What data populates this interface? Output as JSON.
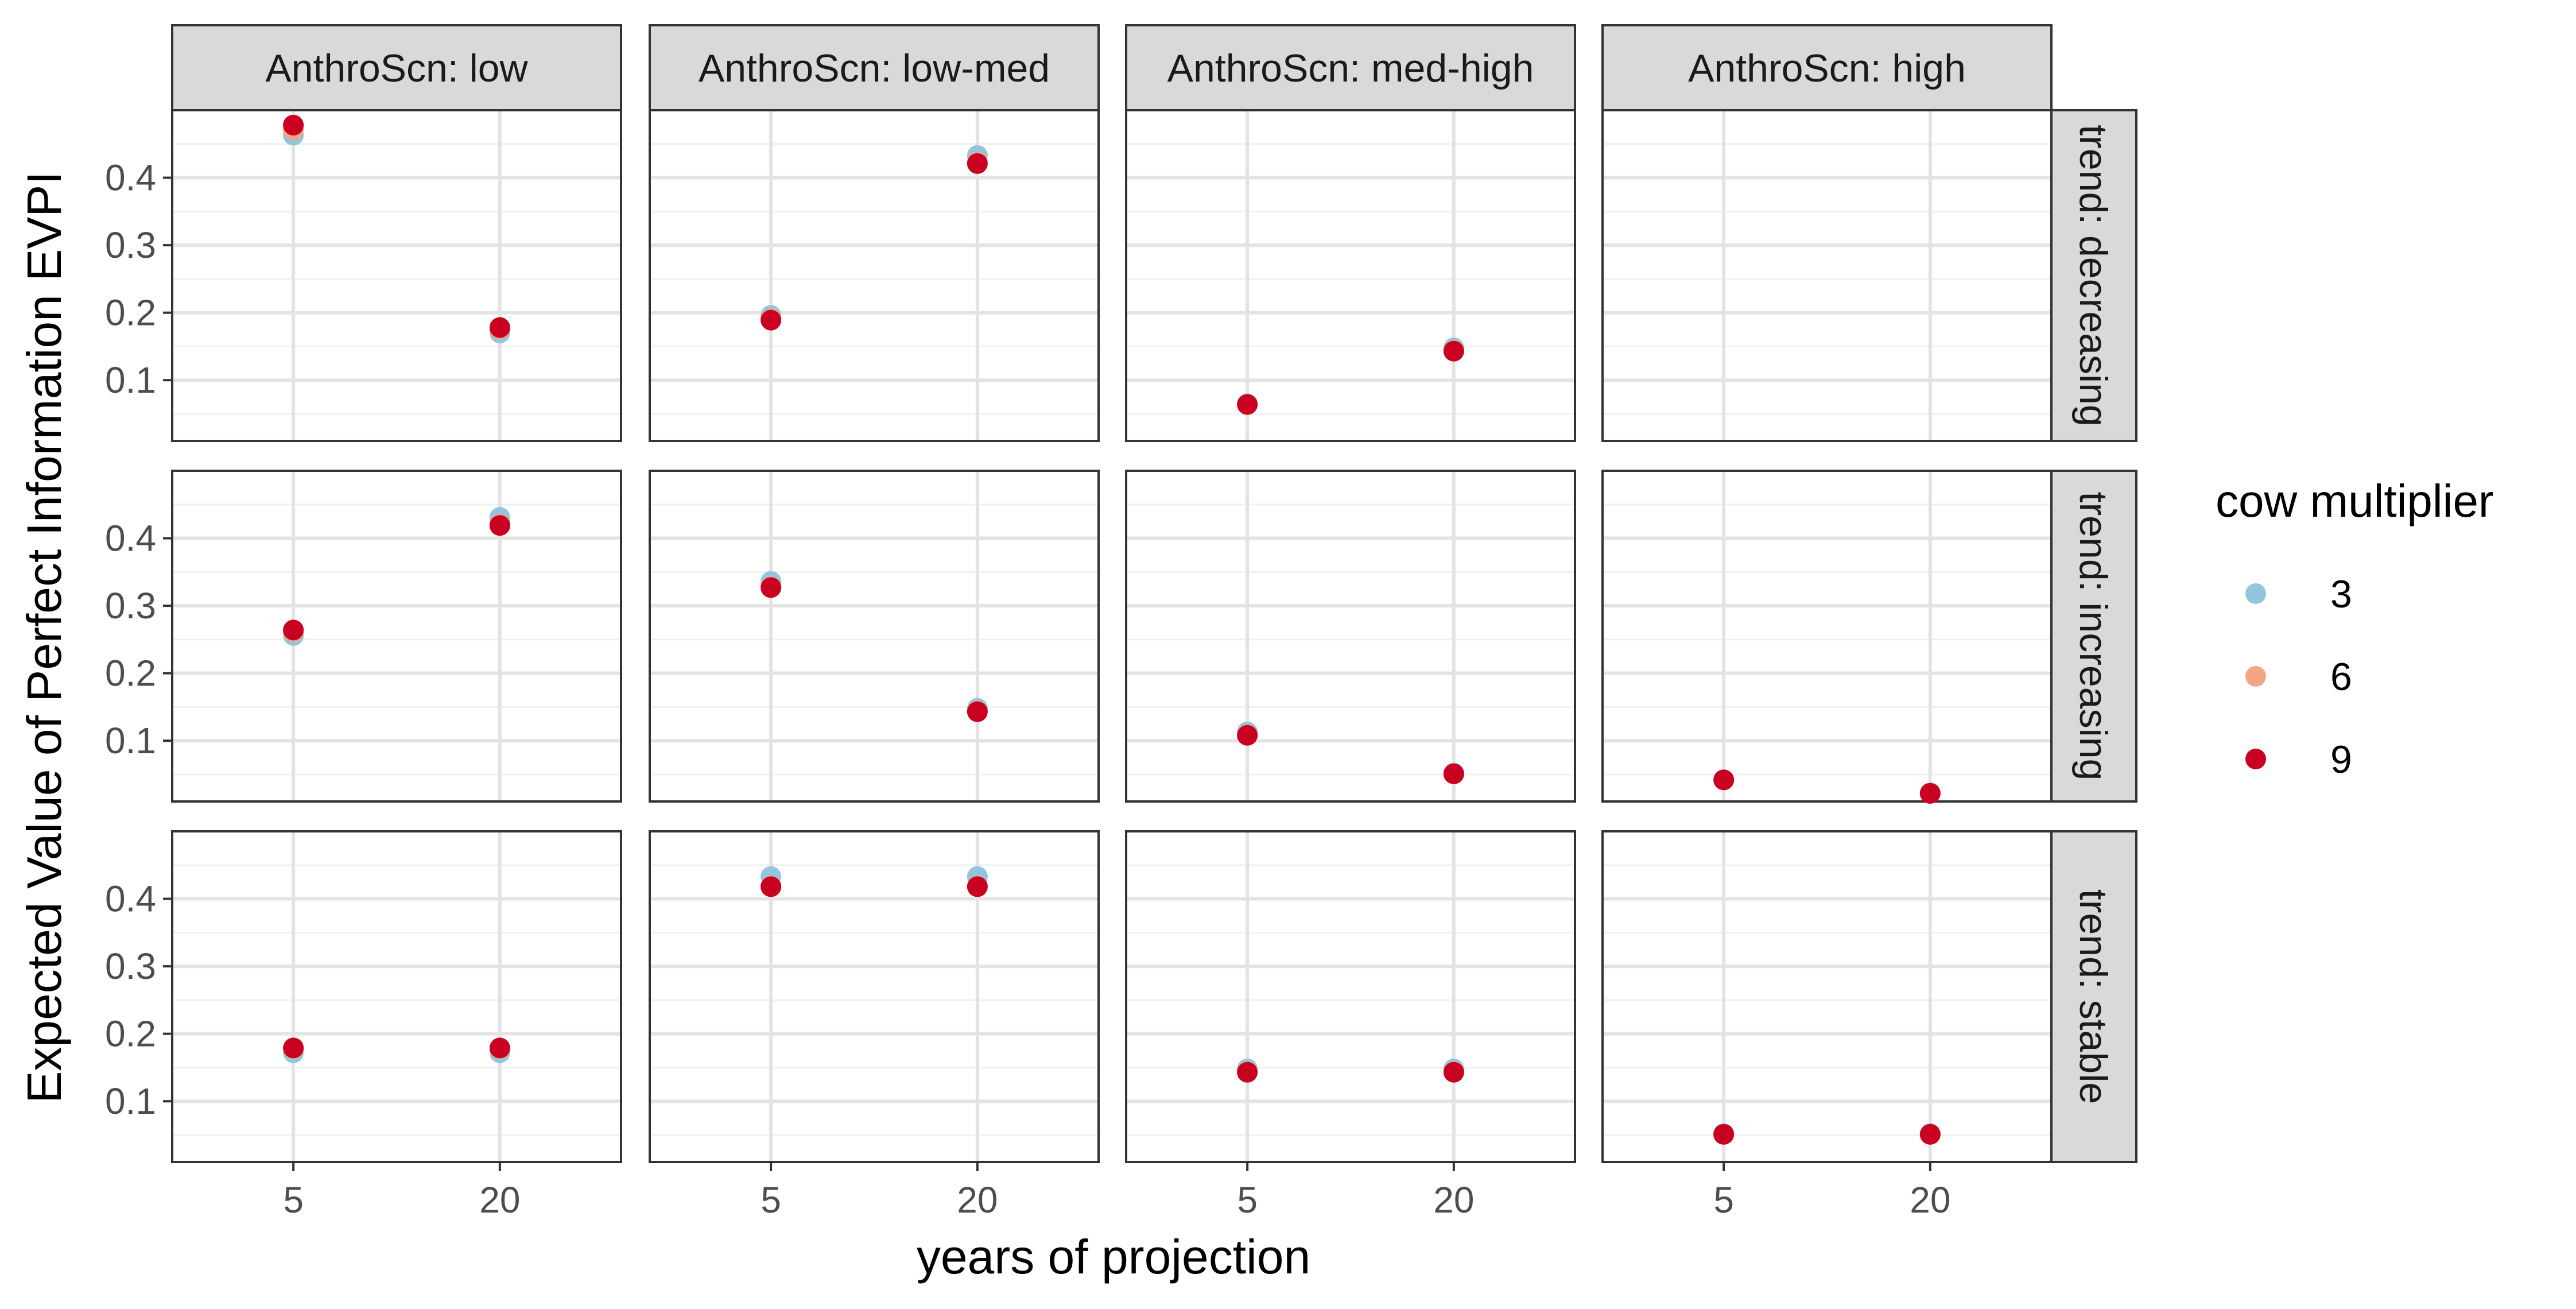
{
  "chart_data": {
    "type": "scatter",
    "facet_columns": [
      "AnthroScn: low",
      "AnthroScn: low-med",
      "AnthroScn: med-high",
      "AnthroScn: high"
    ],
    "facet_rows": [
      "trend: decreasing",
      "trend: increasing",
      "trend: stable"
    ],
    "xlabel": "years of projection",
    "ylabel": "Expected Value of Perfect Information EVPI",
    "x_categories": [
      "5",
      "20"
    ],
    "y_ticks": [
      0.1,
      0.2,
      0.3,
      0.4
    ],
    "y_tick_labels": [
      "0.1",
      "0.2",
      "0.3",
      "0.4"
    ],
    "ylim": [
      0.01,
      0.5
    ],
    "grid": true,
    "legend": {
      "title": "cow multiplier",
      "position": "right",
      "entries": [
        {
          "label": "3",
          "color": "#92C5DE"
        },
        {
          "label": "6",
          "color": "#F4A582"
        },
        {
          "label": "9",
          "color": "#CA0020"
        }
      ]
    },
    "series": [
      {
        "name": "3",
        "color": "#92C5DE",
        "points": [
          {
            "row": 0,
            "col": 0,
            "x": "5",
            "y": 0.463
          },
          {
            "row": 0,
            "col": 0,
            "x": "20",
            "y": 0.17
          },
          {
            "row": 0,
            "col": 1,
            "x": "5",
            "y": 0.196
          },
          {
            "row": 0,
            "col": 1,
            "x": "20",
            "y": 0.433
          },
          {
            "row": 0,
            "col": 2,
            "x": "5",
            "y": 0.065
          },
          {
            "row": 0,
            "col": 2,
            "x": "20",
            "y": 0.148
          },
          {
            "row": 1,
            "col": 0,
            "x": "5",
            "y": 0.256
          },
          {
            "row": 1,
            "col": 0,
            "x": "20",
            "y": 0.431
          },
          {
            "row": 1,
            "col": 1,
            "x": "5",
            "y": 0.336
          },
          {
            "row": 1,
            "col": 1,
            "x": "20",
            "y": 0.148
          },
          {
            "row": 1,
            "col": 2,
            "x": "5",
            "y": 0.113
          },
          {
            "row": 1,
            "col": 2,
            "x": "20",
            "y": 0.052
          },
          {
            "row": 1,
            "col": 3,
            "x": "5",
            "y": 0.042
          },
          {
            "row": 1,
            "col": 3,
            "x": "20",
            "y": 0.023
          },
          {
            "row": 2,
            "col": 0,
            "x": "5",
            "y": 0.172
          },
          {
            "row": 2,
            "col": 0,
            "x": "20",
            "y": 0.172
          },
          {
            "row": 2,
            "col": 1,
            "x": "5",
            "y": 0.433
          },
          {
            "row": 2,
            "col": 1,
            "x": "20",
            "y": 0.433
          },
          {
            "row": 2,
            "col": 2,
            "x": "5",
            "y": 0.148
          },
          {
            "row": 2,
            "col": 2,
            "x": "20",
            "y": 0.148
          },
          {
            "row": 2,
            "col": 3,
            "x": "5",
            "y": 0.052
          },
          {
            "row": 2,
            "col": 3,
            "x": "20",
            "y": 0.052
          }
        ]
      },
      {
        "name": "6",
        "color": "#F4A582",
        "points": [
          {
            "row": 0,
            "col": 0,
            "x": "5",
            "y": 0.471
          },
          {
            "row": 0,
            "col": 0,
            "x": "20",
            "y": 0.176
          },
          {
            "row": 0,
            "col": 1,
            "x": "5",
            "y": 0.191
          },
          {
            "row": 0,
            "col": 1,
            "x": "20",
            "y": 0.423
          },
          {
            "row": 0,
            "col": 2,
            "x": "5",
            "y": 0.064
          },
          {
            "row": 0,
            "col": 2,
            "x": "20",
            "y": 0.144
          },
          {
            "row": 1,
            "col": 0,
            "x": "5",
            "y": 0.262
          },
          {
            "row": 1,
            "col": 0,
            "x": "20",
            "y": 0.421
          },
          {
            "row": 1,
            "col": 1,
            "x": "5",
            "y": 0.328
          },
          {
            "row": 1,
            "col": 1,
            "x": "20",
            "y": 0.144
          },
          {
            "row": 1,
            "col": 2,
            "x": "5",
            "y": 0.109
          },
          {
            "row": 1,
            "col": 2,
            "x": "20",
            "y": 0.051
          },
          {
            "row": 1,
            "col": 3,
            "x": "5",
            "y": 0.042
          },
          {
            "row": 1,
            "col": 3,
            "x": "20",
            "y": 0.022
          },
          {
            "row": 2,
            "col": 0,
            "x": "5",
            "y": 0.178
          },
          {
            "row": 2,
            "col": 0,
            "x": "20",
            "y": 0.178
          },
          {
            "row": 2,
            "col": 1,
            "x": "5",
            "y": 0.419
          },
          {
            "row": 2,
            "col": 1,
            "x": "20",
            "y": 0.419
          },
          {
            "row": 2,
            "col": 2,
            "x": "5",
            "y": 0.144
          },
          {
            "row": 2,
            "col": 2,
            "x": "20",
            "y": 0.144
          },
          {
            "row": 2,
            "col": 3,
            "x": "5",
            "y": 0.051
          },
          {
            "row": 2,
            "col": 3,
            "x": "20",
            "y": 0.051
          }
        ]
      },
      {
        "name": "9",
        "color": "#CA0020",
        "points": [
          {
            "row": 0,
            "col": 0,
            "x": "5",
            "y": 0.478
          },
          {
            "row": 0,
            "col": 0,
            "x": "20",
            "y": 0.178
          },
          {
            "row": 0,
            "col": 1,
            "x": "5",
            "y": 0.189
          },
          {
            "row": 0,
            "col": 1,
            "x": "20",
            "y": 0.421
          },
          {
            "row": 0,
            "col": 2,
            "x": "5",
            "y": 0.064
          },
          {
            "row": 0,
            "col": 2,
            "x": "20",
            "y": 0.143
          },
          {
            "row": 1,
            "col": 0,
            "x": "5",
            "y": 0.264
          },
          {
            "row": 1,
            "col": 0,
            "x": "20",
            "y": 0.419
          },
          {
            "row": 1,
            "col": 1,
            "x": "5",
            "y": 0.327
          },
          {
            "row": 1,
            "col": 1,
            "x": "20",
            "y": 0.143
          },
          {
            "row": 1,
            "col": 2,
            "x": "5",
            "y": 0.108
          },
          {
            "row": 1,
            "col": 2,
            "x": "20",
            "y": 0.051
          },
          {
            "row": 1,
            "col": 3,
            "x": "5",
            "y": 0.042
          },
          {
            "row": 1,
            "col": 3,
            "x": "20",
            "y": 0.022
          },
          {
            "row": 2,
            "col": 0,
            "x": "5",
            "y": 0.179
          },
          {
            "row": 2,
            "col": 0,
            "x": "20",
            "y": 0.179
          },
          {
            "row": 2,
            "col": 1,
            "x": "5",
            "y": 0.418
          },
          {
            "row": 2,
            "col": 1,
            "x": "20",
            "y": 0.418
          },
          {
            "row": 2,
            "col": 2,
            "x": "5",
            "y": 0.143
          },
          {
            "row": 2,
            "col": 2,
            "x": "20",
            "y": 0.143
          },
          {
            "row": 2,
            "col": 3,
            "x": "5",
            "y": 0.051
          },
          {
            "row": 2,
            "col": 3,
            "x": "20",
            "y": 0.051
          }
        ]
      }
    ]
  }
}
